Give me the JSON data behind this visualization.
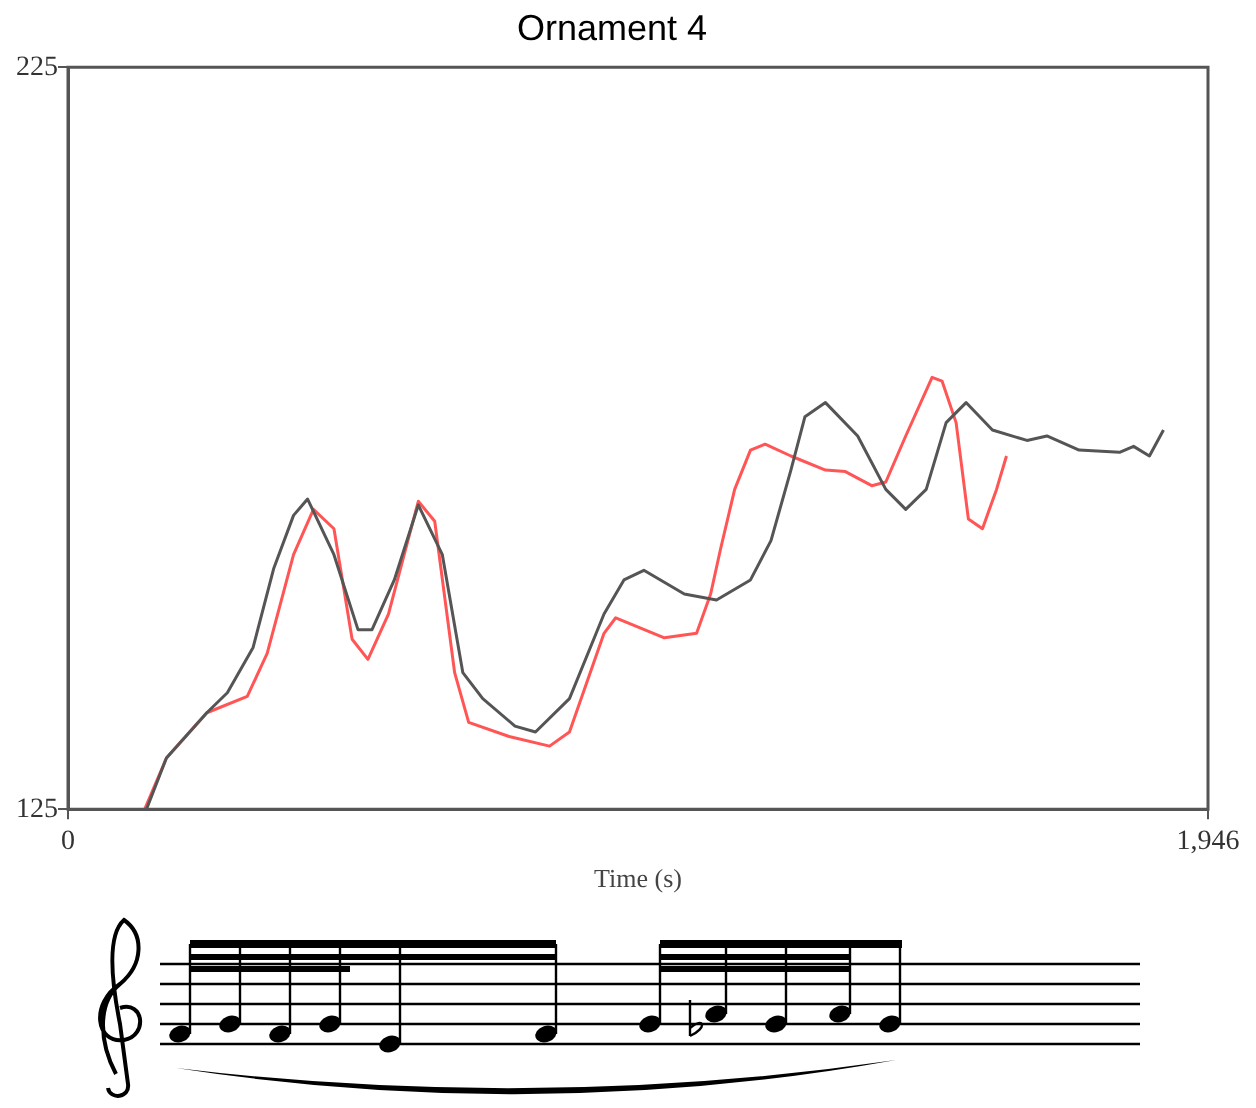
{
  "chart_data": {
    "type": "line",
    "title": "Ornament 4",
    "xlabel": "Time (s)",
    "xlim": [
      0,
      1946
    ],
    "ylim": [
      125,
      225
    ],
    "xticks": [
      0,
      {
        "value": 1946,
        "label": "1,946"
      }
    ],
    "yticks": [
      125,
      225
    ],
    "legend": false,
    "marker": "none",
    "line_style": "solid",
    "series": [
      {
        "color": "#555555",
        "x": [
          134,
          168,
          237,
          272,
          316,
          351,
          385,
          409,
          454,
          495,
          519,
          557,
          598,
          639,
          674,
          708,
          763,
          798,
          856,
          915,
          949,
          983,
          1052,
          1107,
          1165,
          1200,
          1234,
          1258,
          1293,
          1348,
          1396,
          1430,
          1465,
          1499,
          1533,
          1578,
          1637,
          1671,
          1726,
          1795,
          1819,
          1846,
          1870
        ],
        "values": [
          125,
          131.9,
          138,
          140.7,
          146.8,
          157.4,
          164.6,
          166.8,
          159.3,
          149.2,
          149.2,
          155.9,
          166,
          159.3,
          143.4,
          139.9,
          136.2,
          135.4,
          139.9,
          151.3,
          155.9,
          157.2,
          154,
          153.2,
          155.9,
          161.2,
          170.7,
          177.9,
          179.8,
          175.3,
          168.1,
          165.4,
          168.1,
          177.1,
          179.8,
          176.1,
          174.7,
          175.3,
          173.4,
          173.1,
          173.9,
          172.6,
          176.1
        ]
      },
      {
        "color": "#ff5555",
        "x": [
          131,
          168,
          237,
          306,
          340,
          385,
          419,
          454,
          485,
          512,
          547,
          598,
          626,
          660,
          684,
          753,
          822,
          856,
          915,
          935,
          1018,
          1073,
          1097,
          1114,
          1138,
          1165,
          1190,
          1234,
          1293,
          1327,
          1372,
          1396,
          1430,
          1475,
          1492,
          1516,
          1537,
          1561,
          1585,
          1602
        ],
        "values": [
          125,
          131.9,
          138,
          140.2,
          146,
          159.3,
          165.4,
          162.8,
          147.9,
          145.2,
          151.3,
          166.5,
          163.8,
          143.4,
          136.7,
          134.8,
          133.5,
          135.4,
          148.7,
          150.8,
          148.1,
          148.7,
          154,
          160.1,
          168.1,
          173.4,
          174.2,
          172.6,
          170.7,
          170.5,
          168.6,
          169.1,
          175.3,
          183.2,
          182.7,
          177.1,
          164.1,
          162.8,
          168.1,
          172.6
        ]
      }
    ]
  }
}
